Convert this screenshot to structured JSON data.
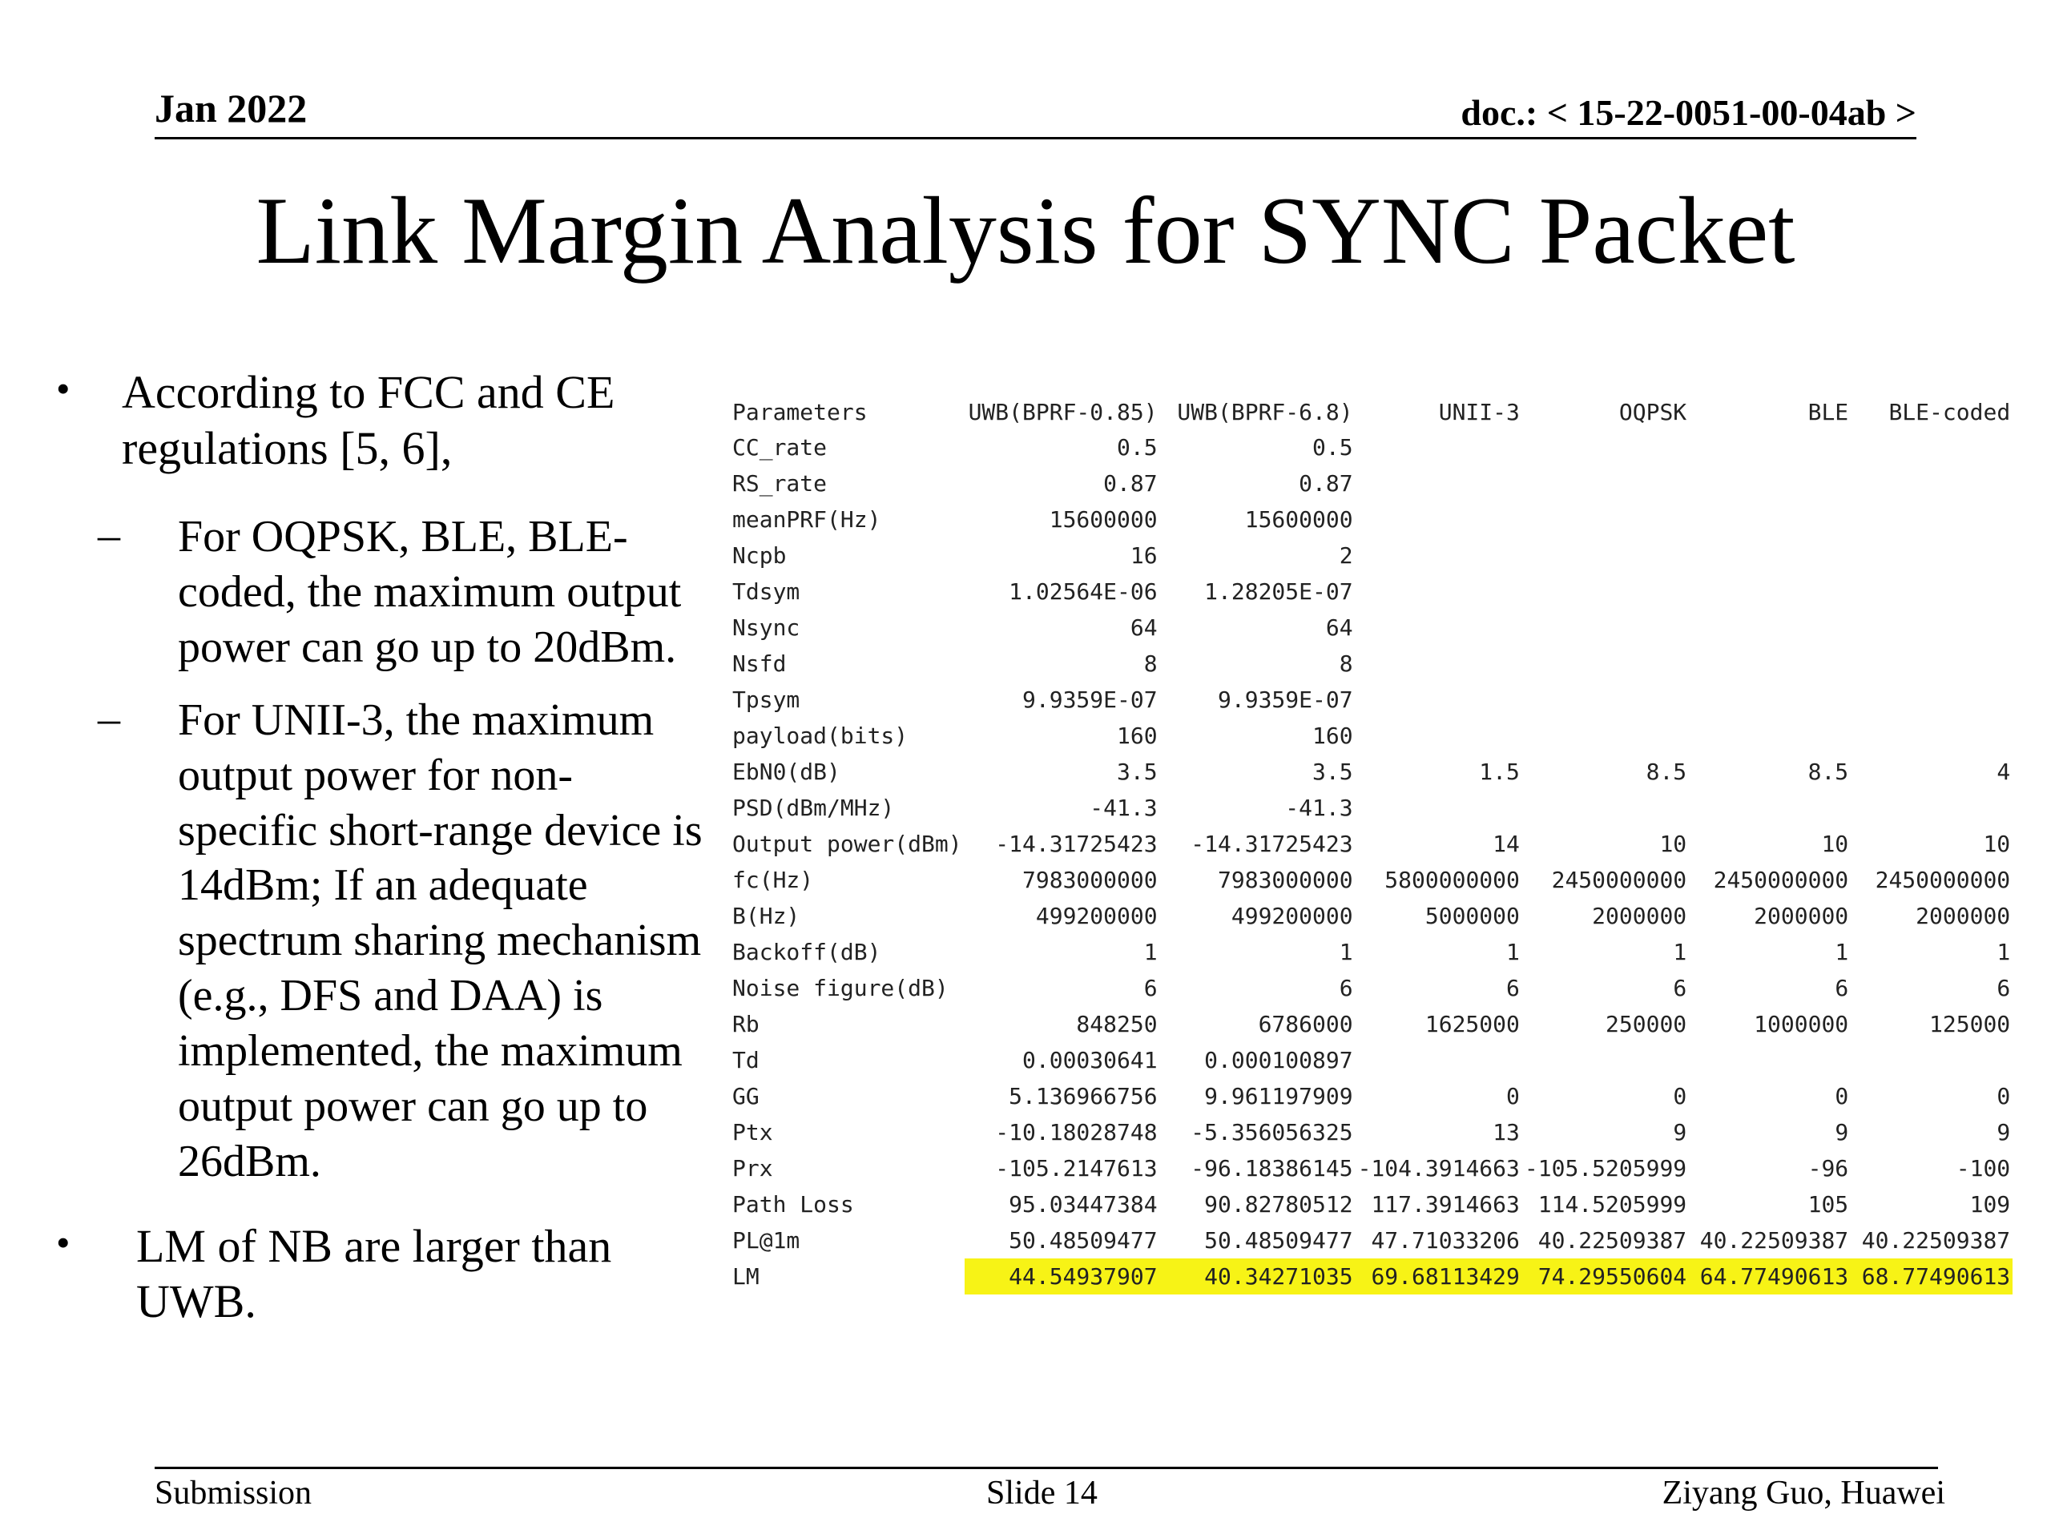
{
  "header": {
    "date": "Jan 2022",
    "doc_id": "doc.: < 15-22-0051-00-04ab >"
  },
  "title": "Link Margin Analysis for SYNC Packet",
  "bullets": {
    "bullet_1": "According to FCC and CE regulations [5, 6],",
    "sub_1": "For OQPSK, BLE, BLE-coded, the maximum output power can go up to 20dBm.",
    "sub_2": "For UNII-3, the maximum output power for non-specific short-range device is 14dBm; If an adequate spectrum sharing mechanism (e.g., DFS and DAA) is implemented, the maximum output power can go up to 26dBm.",
    "bullet_2": "LM of NB are larger than UWB.",
    "bullet_mark": "•",
    "sub_mark": "–"
  },
  "table": {
    "headers": [
      "Parameters",
      "UWB(BPRF-0.85)",
      "UWB(BPRF-6.8)",
      "UNII-3",
      "OQPSK",
      "BLE",
      "BLE-coded"
    ],
    "rows": [
      [
        "CC_rate",
        "0.5",
        "0.5",
        "",
        "",
        "",
        ""
      ],
      [
        "RS_rate",
        "0.87",
        "0.87",
        "",
        "",
        "",
        ""
      ],
      [
        "meanPRF(Hz)",
        "15600000",
        "15600000",
        "",
        "",
        "",
        ""
      ],
      [
        "Ncpb",
        "16",
        "2",
        "",
        "",
        "",
        ""
      ],
      [
        "Tdsym",
        "1.02564E-06",
        "1.28205E-07",
        "",
        "",
        "",
        ""
      ],
      [
        "Nsync",
        "64",
        "64",
        "",
        "",
        "",
        ""
      ],
      [
        "Nsfd",
        "8",
        "8",
        "",
        "",
        "",
        ""
      ],
      [
        "Tpsym",
        "9.9359E-07",
        "9.9359E-07",
        "",
        "",
        "",
        ""
      ],
      [
        "payload(bits)",
        "160",
        "160",
        "",
        "",
        "",
        ""
      ],
      [
        "EbN0(dB)",
        "3.5",
        "3.5",
        "1.5",
        "8.5",
        "8.5",
        "4"
      ],
      [
        "PSD(dBm/MHz)",
        "-41.3",
        "-41.3",
        "",
        "",
        "",
        ""
      ],
      [
        "Output power(dBm)",
        "-14.31725423",
        "-14.31725423",
        "14",
        "10",
        "10",
        "10"
      ],
      [
        "fc(Hz)",
        "7983000000",
        "7983000000",
        "5800000000",
        "2450000000",
        "2450000000",
        "2450000000"
      ],
      [
        "B(Hz)",
        "499200000",
        "499200000",
        "5000000",
        "2000000",
        "2000000",
        "2000000"
      ],
      [
        "Backoff(dB)",
        "1",
        "1",
        "1",
        "1",
        "1",
        "1"
      ],
      [
        "Noise figure(dB)",
        "6",
        "6",
        "6",
        "6",
        "6",
        "6"
      ],
      [
        "Rb",
        "848250",
        "6786000",
        "1625000",
        "250000",
        "1000000",
        "125000"
      ],
      [
        "Td",
        "0.00030641",
        "0.000100897",
        "",
        "",
        "",
        ""
      ],
      [
        "GG",
        "5.136966756",
        "9.961197909",
        "0",
        "0",
        "0",
        "0"
      ],
      [
        "Ptx",
        "-10.18028748",
        "-5.356056325",
        "13",
        "9",
        "9",
        "9"
      ],
      [
        "Prx",
        "-105.2147613",
        "-96.18386145",
        "-104.3914663",
        "-105.5205999",
        "-96",
        "-100"
      ],
      [
        "Path Loss",
        "95.03447384",
        "90.82780512",
        "117.3914663",
        "114.5205999",
        "105",
        "109"
      ],
      [
        "PL@1m",
        "50.48509477",
        "50.48509477",
        "47.71033206",
        "40.22509387",
        "40.22509387",
        "40.22509387"
      ],
      [
        "LM",
        "44.54937907",
        "40.34271035",
        "69.68113429",
        "74.29550604",
        "64.77490613",
        "68.77490613"
      ]
    ],
    "highlight_row": "LM",
    "highlight_color": "#f7f316"
  },
  "footer": {
    "left": "Submission",
    "center": "Slide 14",
    "right": "Ziyang Guo, Huawei"
  }
}
